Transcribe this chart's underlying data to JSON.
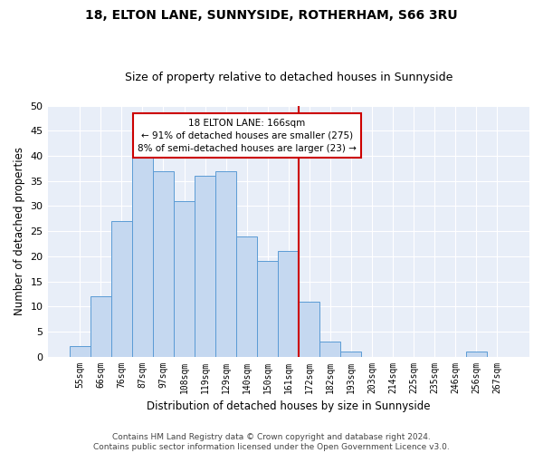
{
  "title": "18, ELTON LANE, SUNNYSIDE, ROTHERHAM, S66 3RU",
  "subtitle": "Size of property relative to detached houses in Sunnyside",
  "xlabel": "Distribution of detached houses by size in Sunnyside",
  "ylabel": "Number of detached properties",
  "bar_labels": [
    "55sqm",
    "66sqm",
    "76sqm",
    "87sqm",
    "97sqm",
    "108sqm",
    "119sqm",
    "129sqm",
    "140sqm",
    "150sqm",
    "161sqm",
    "172sqm",
    "182sqm",
    "193sqm",
    "203sqm",
    "214sqm",
    "225sqm",
    "235sqm",
    "246sqm",
    "256sqm",
    "267sqm"
  ],
  "bar_values": [
    2,
    12,
    27,
    40,
    37,
    31,
    36,
    37,
    24,
    19,
    21,
    11,
    3,
    1,
    0,
    0,
    0,
    0,
    0,
    1,
    0
  ],
  "bar_color": "#c5d8f0",
  "bar_edgecolor": "#5b9bd5",
  "bar_width": 1.0,
  "vline_x": 10.5,
  "vline_color": "#cc0000",
  "annotation_text": "18 ELTON LANE: 166sqm\n← 91% of detached houses are smaller (275)\n8% of semi-detached houses are larger (23) →",
  "annotation_box_color": "#cc0000",
  "ylim": [
    0,
    50
  ],
  "yticks": [
    0,
    5,
    10,
    15,
    20,
    25,
    30,
    35,
    40,
    45,
    50
  ],
  "bg_color": "#e8eef8",
  "grid_color": "#ffffff",
  "footer_text": "Contains HM Land Registry data © Crown copyright and database right 2024.\nContains public sector information licensed under the Open Government Licence v3.0.",
  "title_fontsize": 10,
  "subtitle_fontsize": 9,
  "xlabel_fontsize": 8.5,
  "ylabel_fontsize": 8.5,
  "footer_fontsize": 6.5
}
